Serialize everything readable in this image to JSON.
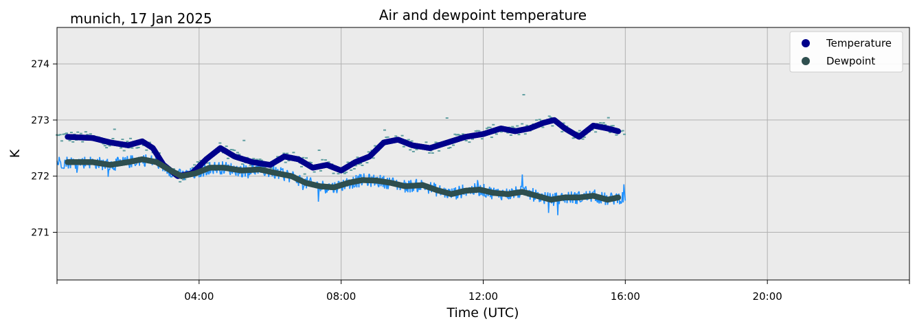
{
  "chart_data": {
    "type": "scatter",
    "title": "Air and dewpoint temperature",
    "location_date": "munich, 17 Jan 2025",
    "xlabel": "Time (UTC)",
    "ylabel": "K",
    "x_unit": "hours UTC",
    "xlim": [
      0,
      24
    ],
    "ylim": [
      270.15,
      274.65
    ],
    "x_ticks": [
      0,
      4,
      8,
      12,
      16,
      20,
      24
    ],
    "x_tick_labels": [
      "",
      "04:00",
      "08:00",
      "12:00",
      "16:00",
      "20:00",
      ""
    ],
    "y_ticks": [
      271,
      272,
      273,
      274
    ],
    "y_tick_labels": [
      "271",
      "272",
      "273",
      "274"
    ],
    "grid": true,
    "legend_position": "top-right",
    "background_color": "#ebebeb",
    "series": [
      {
        "name": "Temperature",
        "color": "#00008b",
        "marker": "circle",
        "points": [
          [
            0.3,
            272.7
          ],
          [
            1.0,
            272.68
          ],
          [
            1.5,
            272.6
          ],
          [
            2.0,
            272.55
          ],
          [
            2.4,
            272.62
          ],
          [
            2.7,
            272.5
          ],
          [
            3.0,
            272.2
          ],
          [
            3.4,
            272.0
          ],
          [
            3.8,
            272.05
          ],
          [
            4.2,
            272.3
          ],
          [
            4.6,
            272.5
          ],
          [
            5.0,
            272.35
          ],
          [
            5.5,
            272.25
          ],
          [
            6.0,
            272.2
          ],
          [
            6.4,
            272.35
          ],
          [
            6.8,
            272.3
          ],
          [
            7.2,
            272.15
          ],
          [
            7.6,
            272.2
          ],
          [
            8.0,
            272.1
          ],
          [
            8.4,
            272.25
          ],
          [
            8.8,
            272.35
          ],
          [
            9.2,
            272.6
          ],
          [
            9.6,
            272.65
          ],
          [
            10.0,
            272.55
          ],
          [
            10.5,
            272.5
          ],
          [
            11.0,
            272.6
          ],
          [
            11.5,
            272.7
          ],
          [
            12.0,
            272.75
          ],
          [
            12.5,
            272.85
          ],
          [
            12.9,
            272.8
          ],
          [
            13.3,
            272.85
          ],
          [
            13.7,
            272.95
          ],
          [
            14.0,
            273.0
          ],
          [
            14.3,
            272.85
          ],
          [
            14.7,
            272.7
          ],
          [
            15.1,
            272.9
          ],
          [
            15.5,
            272.85
          ],
          [
            15.8,
            272.8
          ]
        ]
      },
      {
        "name": "Dewpoint",
        "color": "#2f4f4f",
        "marker": "circle",
        "points": [
          [
            0.3,
            272.25
          ],
          [
            1.0,
            272.25
          ],
          [
            1.5,
            272.2
          ],
          [
            2.0,
            272.25
          ],
          [
            2.4,
            272.3
          ],
          [
            2.8,
            272.25
          ],
          [
            3.2,
            272.1
          ],
          [
            3.5,
            272.0
          ],
          [
            3.9,
            272.05
          ],
          [
            4.3,
            272.15
          ],
          [
            4.7,
            272.15
          ],
          [
            5.2,
            272.1
          ],
          [
            5.7,
            272.12
          ],
          [
            6.2,
            272.05
          ],
          [
            6.6,
            272.0
          ],
          [
            7.0,
            271.88
          ],
          [
            7.4,
            271.82
          ],
          [
            7.8,
            271.8
          ],
          [
            8.2,
            271.88
          ],
          [
            8.6,
            271.93
          ],
          [
            9.0,
            271.92
          ],
          [
            9.4,
            271.88
          ],
          [
            9.8,
            271.82
          ],
          [
            10.3,
            271.84
          ],
          [
            10.7,
            271.75
          ],
          [
            11.1,
            271.68
          ],
          [
            11.5,
            271.74
          ],
          [
            11.9,
            271.76
          ],
          [
            12.3,
            271.7
          ],
          [
            12.7,
            271.68
          ],
          [
            13.1,
            271.72
          ],
          [
            13.5,
            271.65
          ],
          [
            13.9,
            271.58
          ],
          [
            14.3,
            271.62
          ],
          [
            14.7,
            271.62
          ],
          [
            15.1,
            271.65
          ],
          [
            15.5,
            271.58
          ],
          [
            15.8,
            271.62
          ]
        ]
      }
    ],
    "raw_temperature_color": "#5f9ea0",
    "raw_dewpoint_color": "#1e90ff"
  }
}
